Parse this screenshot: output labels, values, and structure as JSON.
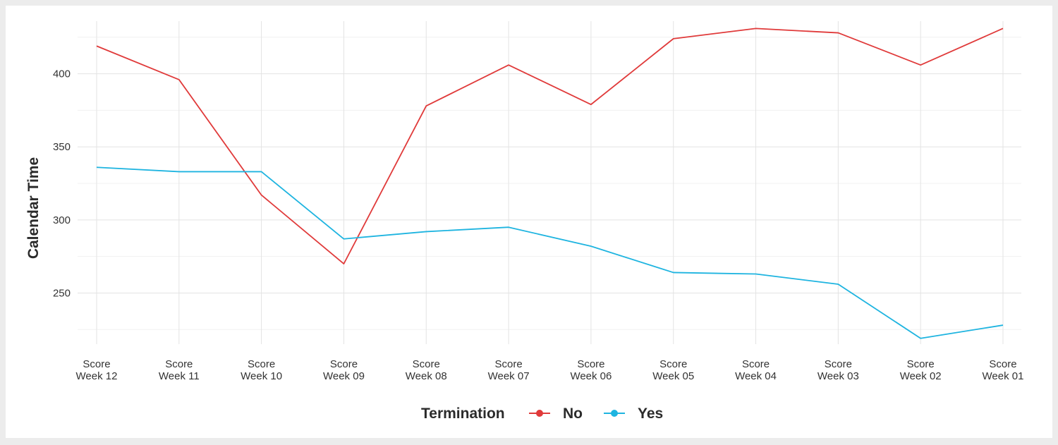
{
  "chart_data": {
    "type": "line",
    "title": "",
    "xlabel": "",
    "ylabel": "Calendar Time",
    "categories": [
      [
        "Score",
        "Week 12"
      ],
      [
        "Score",
        "Week 11"
      ],
      [
        "Score",
        "Week 10"
      ],
      [
        "Score",
        "Week 09"
      ],
      [
        "Score",
        "Week 08"
      ],
      [
        "Score",
        "Week 07"
      ],
      [
        "Score",
        "Week 06"
      ],
      [
        "Score",
        "Week 05"
      ],
      [
        "Score",
        "Week 04"
      ],
      [
        "Score",
        "Week 03"
      ],
      [
        "Score",
        "Week 02"
      ],
      [
        "Score",
        "Week 01"
      ]
    ],
    "ylim": [
      215,
      436
    ],
    "yticks": [
      250,
      300,
      350,
      400
    ],
    "grid": true,
    "legend": {
      "title": "Termination",
      "placement": "bottom"
    },
    "series": [
      {
        "name": "No",
        "color": "#e03a3a",
        "values": [
          419,
          396,
          317,
          270,
          378,
          406,
          379,
          424,
          431,
          428,
          406,
          431
        ]
      },
      {
        "name": "Yes",
        "color": "#1eb4e0",
        "values": [
          336,
          333,
          333,
          287,
          292,
          295,
          282,
          264,
          263,
          256,
          219,
          228
        ]
      }
    ]
  }
}
